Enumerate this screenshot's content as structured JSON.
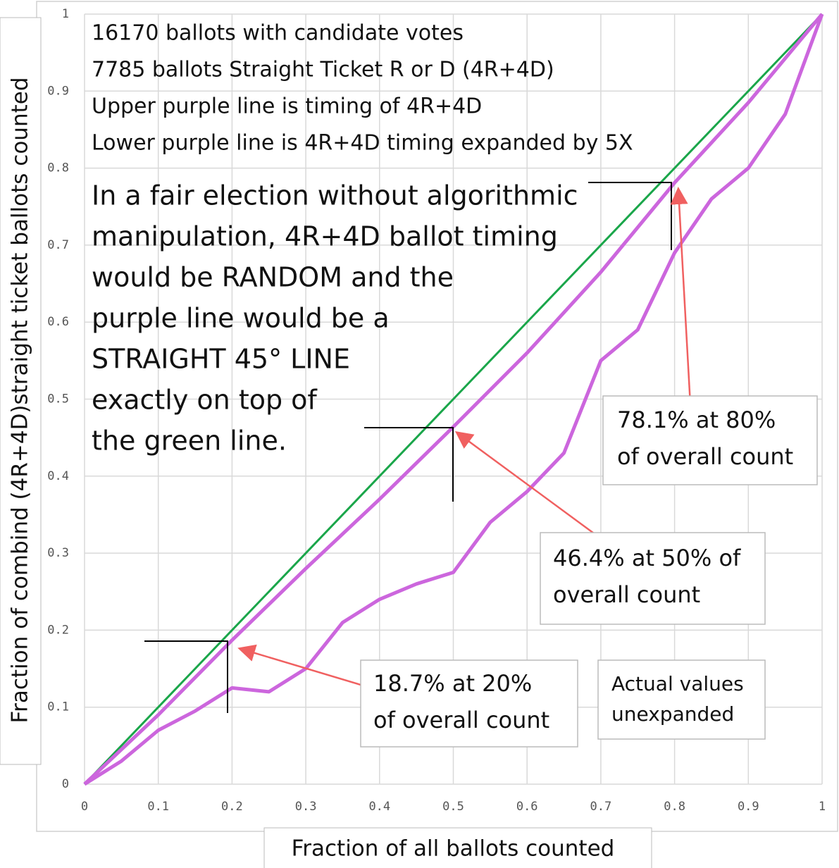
{
  "chart_data": {
    "type": "line",
    "x_label": "Fraction of all ballots counted",
    "y_label": "Fraction of combind (4R+4D)straight ticket ballots counted",
    "xlim": [
      0,
      1
    ],
    "ylim": [
      0,
      1
    ],
    "xticks": [
      0,
      0.1,
      0.2,
      0.3,
      0.4,
      0.5,
      0.6,
      0.7,
      0.8,
      0.9,
      1
    ],
    "yticks": [
      0,
      0.1,
      0.2,
      0.3,
      0.4,
      0.5,
      0.6,
      0.7,
      0.8,
      0.9,
      1
    ],
    "grid": true,
    "series": [
      {
        "color": "#1aa64a",
        "x": [
          0,
          1
        ],
        "values": [
          0,
          1
        ]
      },
      {
        "color": "#cc66dd",
        "x": [
          0,
          0.1,
          0.2,
          0.3,
          0.4,
          0.5,
          0.6,
          0.7,
          0.8,
          0.9,
          1
        ],
        "values": [
          0,
          0.09,
          0.187,
          0.28,
          0.37,
          0.464,
          0.56,
          0.665,
          0.781,
          0.885,
          1
        ]
      },
      {
        "color": "#cc66dd",
        "x": [
          0,
          0.05,
          0.1,
          0.15,
          0.2,
          0.25,
          0.3,
          0.35,
          0.4,
          0.45,
          0.5,
          0.55,
          0.6,
          0.65,
          0.7,
          0.75,
          0.8,
          0.85,
          0.9,
          0.95,
          1
        ],
        "values": [
          0,
          0.03,
          0.07,
          0.095,
          0.125,
          0.12,
          0.15,
          0.21,
          0.24,
          0.26,
          0.275,
          0.34,
          0.38,
          0.43,
          0.55,
          0.59,
          0.69,
          0.76,
          0.8,
          0.87,
          1
        ]
      }
    ],
    "annotations": [
      {
        "lines": [
          "16170 ballots with candidate votes",
          "7785  ballots Straight Ticket R or D (4R+4D)",
          "Upper purple line is timing of 4R+4D",
          "Lower purple line is 4R+4D timing expanded by 5X"
        ]
      },
      {
        "lines": [
          "In a fair election without algorithmic",
          "manipulation, 4R+4D ballot timing",
          "would be RANDOM and the",
          "purple line would be a",
          "STRAIGHT 45° LINE",
          "exactly on top of",
          "the green line."
        ]
      },
      {
        "lines": [
          "78.1% at 80%",
          "of overall count"
        ]
      },
      {
        "lines": [
          "46.4% at 50% of",
          "overall count"
        ]
      },
      {
        "lines": [
          "18.7% at 20%",
          "of overall count"
        ]
      },
      {
        "lines": [
          "Actual values",
          "unexpanded"
        ]
      }
    ]
  }
}
